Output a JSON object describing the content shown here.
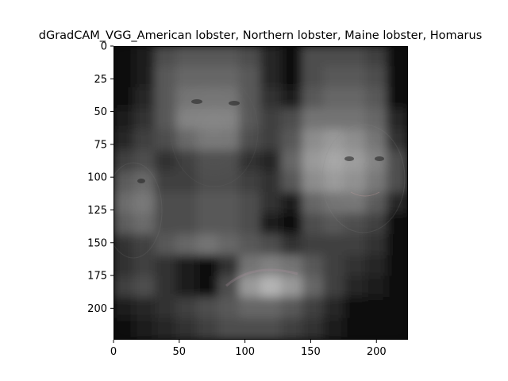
{
  "chart_data": {
    "type": "heatmap",
    "title": "dGradCAM_VGG_American lobster, Northern lobster, Maine lobster, Homarus",
    "xlabel": "",
    "ylabel": "",
    "xlim": [
      0,
      224
    ],
    "ylim": [
      224,
      0
    ],
    "x_ticks": [
      "0",
      "50",
      "100",
      "150",
      "200"
    ],
    "y_ticks": [
      "0",
      "25",
      "50",
      "75",
      "100",
      "125",
      "150",
      "175",
      "200"
    ],
    "grid": false,
    "colormap": "grayscale",
    "grid_shape": [
      14,
      14
    ],
    "values": [
      [
        0.05,
        0.1,
        0.3,
        0.35,
        0.35,
        0.35,
        0.3,
        0.15,
        0.05,
        0.3,
        0.3,
        0.3,
        0.25,
        0.05
      ],
      [
        0.05,
        0.1,
        0.35,
        0.4,
        0.4,
        0.4,
        0.35,
        0.15,
        0.05,
        0.3,
        0.35,
        0.35,
        0.3,
        0.05
      ],
      [
        0.05,
        0.15,
        0.35,
        0.45,
        0.45,
        0.45,
        0.35,
        0.2,
        0.1,
        0.35,
        0.4,
        0.4,
        0.35,
        0.05
      ],
      [
        0.1,
        0.2,
        0.35,
        0.5,
        0.5,
        0.5,
        0.35,
        0.25,
        0.3,
        0.45,
        0.45,
        0.45,
        0.4,
        0.15
      ],
      [
        0.15,
        0.25,
        0.3,
        0.4,
        0.45,
        0.45,
        0.3,
        0.25,
        0.35,
        0.55,
        0.6,
        0.55,
        0.45,
        0.2
      ],
      [
        0.25,
        0.3,
        0.2,
        0.25,
        0.3,
        0.3,
        0.2,
        0.15,
        0.4,
        0.6,
        0.65,
        0.6,
        0.5,
        0.3
      ],
      [
        0.35,
        0.4,
        0.25,
        0.25,
        0.3,
        0.3,
        0.25,
        0.2,
        0.35,
        0.55,
        0.6,
        0.55,
        0.45,
        0.3
      ],
      [
        0.4,
        0.45,
        0.3,
        0.3,
        0.35,
        0.35,
        0.3,
        0.2,
        0.1,
        0.4,
        0.45,
        0.45,
        0.35,
        0.15
      ],
      [
        0.35,
        0.4,
        0.3,
        0.3,
        0.35,
        0.35,
        0.3,
        0.1,
        0.05,
        0.3,
        0.35,
        0.3,
        0.25,
        0.05
      ],
      [
        0.2,
        0.25,
        0.35,
        0.4,
        0.45,
        0.4,
        0.35,
        0.3,
        0.2,
        0.25,
        0.25,
        0.25,
        0.2,
        0.05
      ],
      [
        0.2,
        0.25,
        0.2,
        0.1,
        0.05,
        0.2,
        0.45,
        0.5,
        0.45,
        0.35,
        0.25,
        0.2,
        0.15,
        0.05
      ],
      [
        0.25,
        0.3,
        0.2,
        0.1,
        0.05,
        0.3,
        0.6,
        0.7,
        0.6,
        0.4,
        0.25,
        0.15,
        0.1,
        0.05
      ],
      [
        0.1,
        0.15,
        0.2,
        0.25,
        0.3,
        0.35,
        0.4,
        0.4,
        0.35,
        0.25,
        0.15,
        0.05,
        0.05,
        0.05
      ],
      [
        0.05,
        0.1,
        0.15,
        0.2,
        0.25,
        0.3,
        0.3,
        0.3,
        0.25,
        0.2,
        0.1,
        0.05,
        0.05,
        0.05
      ]
    ]
  }
}
